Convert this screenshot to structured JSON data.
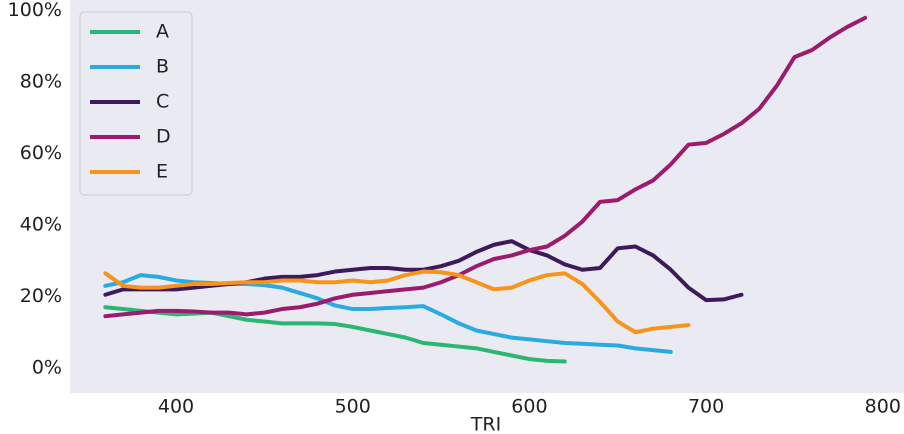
{
  "chart_data": {
    "type": "line",
    "x_label": "TRI",
    "legend": "upper-left",
    "x": [
      360,
      370,
      380,
      390,
      400,
      410,
      420,
      430,
      440,
      450,
      460,
      470,
      480,
      490,
      500,
      510,
      520,
      530,
      540,
      550,
      560,
      570,
      580,
      590,
      600,
      610,
      620,
      630,
      640,
      650,
      660,
      670,
      680,
      690,
      700,
      710,
      720,
      730,
      740,
      750,
      760,
      770,
      780,
      790
    ],
    "xlim": [
      340,
      812
    ],
    "ylim": [
      -7,
      103
    ],
    "xticks": [
      400,
      500,
      600,
      700,
      800
    ],
    "yticks": [
      {
        "value": 0,
        "label": "0%"
      },
      {
        "value": 20,
        "label": "20%"
      },
      {
        "value": 40,
        "label": "40%"
      },
      {
        "value": 60,
        "label": "60%"
      },
      {
        "value": 80,
        "label": "80%"
      },
      {
        "value": 100,
        "label": "100%"
      }
    ],
    "series": [
      {
        "name": "A",
        "color": "#2bb673",
        "values": [
          17,
          16.5,
          16,
          15.5,
          15,
          15.2,
          15.5,
          14.5,
          13.5,
          13,
          12.5,
          12.5,
          12.5,
          12.3,
          11.5,
          10.5,
          9.5,
          8.5,
          7,
          6.5,
          6,
          5.5,
          4.5,
          3.5,
          2.5,
          2,
          1.8,
          null,
          null,
          null,
          null,
          null,
          null,
          null,
          null,
          null,
          null,
          null,
          null,
          null,
          null,
          null,
          null,
          null
        ]
      },
      {
        "name": "B",
        "color": "#29abe2",
        "values": [
          23,
          24,
          26,
          25.5,
          24.5,
          24,
          23.8,
          23.5,
          23.5,
          23.2,
          22.5,
          21,
          19.5,
          17.5,
          16.5,
          16.5,
          16.8,
          17,
          17.3,
          15,
          12.5,
          10.5,
          9.5,
          8.5,
          8,
          7.5,
          7,
          6.8,
          6.5,
          6.3,
          5.5,
          5,
          4.5,
          null,
          null,
          null,
          null,
          null,
          null,
          null,
          null,
          null,
          null,
          null
        ]
      },
      {
        "name": "C",
        "color": "#3c1a5b",
        "values": [
          20.5,
          22,
          22,
          22,
          22,
          22.5,
          23,
          23.5,
          24,
          25,
          25.5,
          25.5,
          26,
          27,
          27.5,
          28,
          28,
          27.5,
          27.5,
          28.5,
          30,
          32.5,
          34.5,
          35.5,
          33,
          31.5,
          29,
          27.5,
          28,
          33.5,
          34,
          31.5,
          27.5,
          22.5,
          19,
          19.2,
          20.5,
          null,
          null,
          null,
          null,
          null,
          null,
          null
        ]
      },
      {
        "name": "D",
        "color": "#9b1b6e",
        "values": [
          14.5,
          15,
          15.5,
          16,
          16,
          15.8,
          15.5,
          15.5,
          15,
          15.5,
          16.5,
          17,
          18,
          19.5,
          20.5,
          21,
          21.5,
          22,
          22.5,
          24,
          26,
          28.5,
          30.5,
          31.5,
          33,
          34,
          37,
          41,
          46.5,
          47,
          50,
          52.5,
          57,
          62.5,
          63,
          65.5,
          68.5,
          72.5,
          79,
          87,
          89,
          92.5,
          95.5,
          98
        ]
      },
      {
        "name": "E",
        "color": "#f7941d",
        "values": [
          26.5,
          23,
          22.5,
          22.5,
          23,
          23.5,
          23.5,
          23.8,
          24,
          24,
          24.5,
          24.5,
          24,
          24,
          24.5,
          24,
          24.5,
          26,
          27,
          26.8,
          26,
          24,
          22,
          22.5,
          24.5,
          26,
          26.5,
          23.5,
          18.5,
          13,
          10,
          11,
          11.5,
          12,
          null,
          null,
          null,
          null,
          null,
          null,
          null,
          null,
          null,
          null
        ]
      }
    ]
  }
}
